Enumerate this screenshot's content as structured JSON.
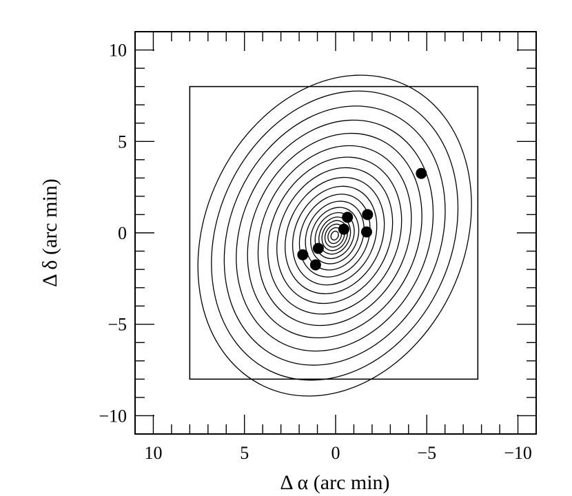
{
  "chart_data": {
    "type": "contour",
    "title": "",
    "xlabel": "Δ α (arc min)",
    "ylabel": "Δ δ (arc min)",
    "xlim": [
      11,
      -11
    ],
    "ylim": [
      -11,
      11
    ],
    "x_ticks": [
      {
        "value": 10,
        "label": "10"
      },
      {
        "value": 5,
        "label": "5"
      },
      {
        "value": 0,
        "label": "0"
      },
      {
        "value": -5,
        "label": "−5"
      },
      {
        "value": -10,
        "label": "−10"
      }
    ],
    "y_ticks": [
      {
        "value": 10,
        "label": "10"
      },
      {
        "value": 5,
        "label": "5"
      },
      {
        "value": 0,
        "label": "0"
      },
      {
        "value": -5,
        "label": "−5"
      },
      {
        "value": -10,
        "label": "−10"
      }
    ],
    "minor_tick_step": 1,
    "grid": false,
    "field_box": {
      "x": [
        8,
        -7.8
      ],
      "y": [
        -8,
        8
      ]
    },
    "contours": {
      "center": [
        0.05,
        -0.15
      ],
      "tilt_deg": 65,
      "axis_ratio": 0.78,
      "semi_major": [
        0.25,
        0.45,
        0.65,
        0.85,
        1.05,
        1.3,
        1.6,
        1.95,
        2.35,
        2.8,
        3.3,
        3.85,
        4.45,
        5.1,
        5.8,
        6.55,
        7.35,
        8.2,
        9.1
      ]
    },
    "points": [
      {
        "x": -4.7,
        "y": 3.25
      },
      {
        "x": -1.75,
        "y": 1.0
      },
      {
        "x": -1.7,
        "y": 0.05
      },
      {
        "x": -0.65,
        "y": 0.85
      },
      {
        "x": -0.45,
        "y": 0.2
      },
      {
        "x": 1.8,
        "y": -1.2
      },
      {
        "x": 0.95,
        "y": -0.85
      },
      {
        "x": 1.1,
        "y": -1.75
      }
    ],
    "colors": {
      "line": "#000000",
      "background": "#ffffff",
      "marker": "#000000"
    }
  }
}
